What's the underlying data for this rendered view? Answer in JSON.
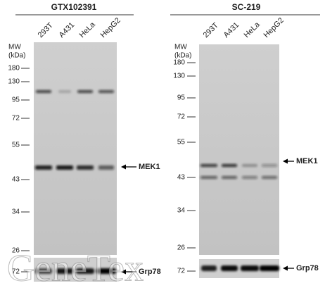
{
  "panels": [
    {
      "title": "GTX102391",
      "lanes": [
        "293T",
        "A431",
        "HeLa",
        "HepG2"
      ],
      "mw_label": "MW",
      "mw_unit": "(kDa)",
      "markers": [
        180,
        130,
        95,
        72,
        55,
        43,
        34,
        26
      ],
      "loading_marker": 72,
      "target": "MEK1",
      "loading_control": "Grp78"
    },
    {
      "title": "SC-219",
      "lanes": [
        "293T",
        "A431",
        "HeLa",
        "HepG2"
      ],
      "mw_label": "MW",
      "mw_unit": "(kDa)",
      "markers": [
        180,
        130,
        95,
        72,
        55,
        43,
        34,
        26
      ],
      "loading_marker": 72,
      "target": "MEK1",
      "loading_control": "Grp78"
    }
  ],
  "watermark": "GeneTex"
}
